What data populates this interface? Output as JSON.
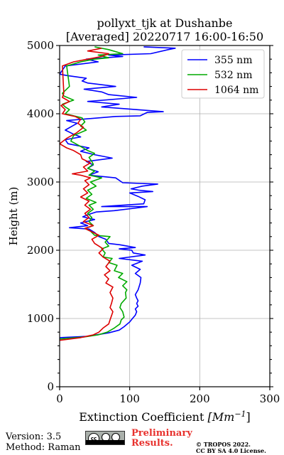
{
  "chart_data": {
    "type": "line",
    "title_line1": "pollyxt_tjk at Dushanbe",
    "title_line2": "[Averaged] 20220717 16:00-16:50",
    "xlabel": "Extinction Coefficient",
    "xlabel_unit": "[Mm^-1]",
    "ylabel": "Height (m)",
    "xlim": [
      0,
      300
    ],
    "ylim": [
      0,
      5000
    ],
    "xticks": [
      0,
      100,
      200,
      300
    ],
    "yticks": [
      0,
      1000,
      2000,
      3000,
      4000,
      5000
    ],
    "grid": true,
    "legend_position": "top-right",
    "series": [
      {
        "name": "355 nm",
        "color": "#0000ff",
        "points": [
          [
            0,
            720
          ],
          [
            40,
            740
          ],
          [
            70,
            790
          ],
          [
            85,
            830
          ],
          [
            92,
            880
          ],
          [
            100,
            950
          ],
          [
            104,
            1000
          ],
          [
            108,
            1050
          ],
          [
            110,
            1100
          ],
          [
            108,
            1140
          ],
          [
            112,
            1180
          ],
          [
            110,
            1220
          ],
          [
            112,
            1260
          ],
          [
            110,
            1300
          ],
          [
            108,
            1350
          ],
          [
            112,
            1420
          ],
          [
            115,
            1520
          ],
          [
            116,
            1600
          ],
          [
            108,
            1660
          ],
          [
            115,
            1720
          ],
          [
            103,
            1780
          ],
          [
            118,
            1840
          ],
          [
            85,
            1880
          ],
          [
            122,
            1930
          ],
          [
            105,
            1960
          ],
          [
            103,
            2000
          ],
          [
            85,
            2020
          ],
          [
            108,
            2040
          ],
          [
            86,
            2080
          ],
          [
            70,
            2100
          ],
          [
            66,
            2160
          ],
          [
            56,
            2200
          ],
          [
            50,
            2260
          ],
          [
            42,
            2310
          ],
          [
            14,
            2330
          ],
          [
            40,
            2360
          ],
          [
            30,
            2400
          ],
          [
            50,
            2450
          ],
          [
            33,
            2490
          ],
          [
            40,
            2520
          ],
          [
            52,
            2560
          ],
          [
            78,
            2580
          ],
          [
            110,
            2620
          ],
          [
            125,
            2640
          ],
          [
            60,
            2640
          ],
          [
            120,
            2680
          ],
          [
            122,
            2740
          ],
          [
            112,
            2790
          ],
          [
            100,
            2840
          ],
          [
            133,
            2860
          ],
          [
            113,
            2880
          ],
          [
            102,
            2900
          ],
          [
            118,
            2940
          ],
          [
            140,
            2970
          ],
          [
            90,
            2990
          ],
          [
            80,
            3060
          ],
          [
            42,
            3100
          ],
          [
            55,
            3150
          ],
          [
            40,
            3200
          ],
          [
            48,
            3250
          ],
          [
            38,
            3300
          ],
          [
            75,
            3350
          ],
          [
            50,
            3400
          ],
          [
            30,
            3450
          ],
          [
            42,
            3500
          ],
          [
            12,
            3560
          ],
          [
            8,
            3620
          ],
          [
            30,
            3660
          ],
          [
            20,
            3700
          ],
          [
            8,
            3760
          ],
          [
            18,
            3820
          ],
          [
            25,
            3860
          ],
          [
            10,
            3900
          ],
          [
            80,
            3960
          ],
          [
            115,
            3970
          ],
          [
            125,
            4020
          ],
          [
            148,
            4030
          ],
          [
            110,
            4060
          ],
          [
            60,
            4100
          ],
          [
            85,
            4140
          ],
          [
            40,
            4180
          ],
          [
            110,
            4240
          ],
          [
            70,
            4280
          ],
          [
            60,
            4320
          ],
          [
            35,
            4360
          ],
          [
            80,
            4400
          ],
          [
            40,
            4450
          ],
          [
            32,
            4480
          ],
          [
            38,
            4520
          ],
          [
            10,
            4560
          ],
          [
            0,
            4580
          ],
          [
            8,
            4700
          ],
          [
            55,
            4760
          ],
          [
            38,
            4800
          ],
          [
            90,
            4840
          ],
          [
            70,
            4860
          ],
          [
            130,
            4880
          ],
          [
            155,
            4940
          ],
          [
            165,
            4960
          ],
          [
            120,
            4980
          ]
        ]
      },
      {
        "name": "532 nm",
        "color": "#00aa00",
        "points": [
          [
            0,
            700
          ],
          [
            35,
            730
          ],
          [
            55,
            760
          ],
          [
            68,
            800
          ],
          [
            78,
            860
          ],
          [
            86,
            920
          ],
          [
            88,
            980
          ],
          [
            92,
            1020
          ],
          [
            90,
            1100
          ],
          [
            86,
            1160
          ],
          [
            88,
            1220
          ],
          [
            95,
            1300
          ],
          [
            94,
            1380
          ],
          [
            96,
            1420
          ],
          [
            90,
            1480
          ],
          [
            96,
            1540
          ],
          [
            84,
            1600
          ],
          [
            90,
            1660
          ],
          [
            78,
            1700
          ],
          [
            82,
            1780
          ],
          [
            70,
            1820
          ],
          [
            75,
            1880
          ],
          [
            62,
            1900
          ],
          [
            65,
            1960
          ],
          [
            60,
            2020
          ],
          [
            70,
            2060
          ],
          [
            65,
            2120
          ],
          [
            72,
            2200
          ],
          [
            50,
            2220
          ],
          [
            44,
            2280
          ],
          [
            36,
            2320
          ],
          [
            48,
            2360
          ],
          [
            42,
            2420
          ],
          [
            46,
            2480
          ],
          [
            40,
            2540
          ],
          [
            48,
            2600
          ],
          [
            42,
            2660
          ],
          [
            52,
            2700
          ],
          [
            38,
            2760
          ],
          [
            46,
            2820
          ],
          [
            40,
            2880
          ],
          [
            52,
            2940
          ],
          [
            44,
            3000
          ],
          [
            60,
            3060
          ],
          [
            42,
            3100
          ],
          [
            50,
            3160
          ],
          [
            40,
            3200
          ],
          [
            48,
            3260
          ],
          [
            46,
            3300
          ],
          [
            42,
            3360
          ],
          [
            50,
            3420
          ],
          [
            40,
            3460
          ],
          [
            30,
            3520
          ],
          [
            16,
            3600
          ],
          [
            20,
            3680
          ],
          [
            38,
            3760
          ],
          [
            30,
            3820
          ],
          [
            36,
            3880
          ],
          [
            32,
            3940
          ],
          [
            8,
            4000
          ],
          [
            14,
            4060
          ],
          [
            8,
            4100
          ],
          [
            4,
            4140
          ],
          [
            20,
            4200
          ],
          [
            6,
            4260
          ],
          [
            4,
            4300
          ],
          [
            14,
            4400
          ],
          [
            10,
            4700
          ],
          [
            30,
            4760
          ],
          [
            50,
            4800
          ],
          [
            70,
            4820
          ],
          [
            55,
            4860
          ],
          [
            90,
            4880
          ],
          [
            70,
            4940
          ],
          [
            50,
            4980
          ]
        ]
      },
      {
        "name": "1064 nm",
        "color": "#dd0000",
        "points": [
          [
            0,
            680
          ],
          [
            30,
            720
          ],
          [
            48,
            760
          ],
          [
            56,
            800
          ],
          [
            62,
            860
          ],
          [
            70,
            920
          ],
          [
            72,
            980
          ],
          [
            74,
            1040
          ],
          [
            76,
            1100
          ],
          [
            72,
            1160
          ],
          [
            74,
            1220
          ],
          [
            76,
            1300
          ],
          [
            72,
            1380
          ],
          [
            76,
            1460
          ],
          [
            66,
            1520
          ],
          [
            70,
            1580
          ],
          [
            64,
            1640
          ],
          [
            72,
            1700
          ],
          [
            66,
            1760
          ],
          [
            72,
            1840
          ],
          [
            62,
            1900
          ],
          [
            56,
            1960
          ],
          [
            62,
            2020
          ],
          [
            56,
            2060
          ],
          [
            50,
            2100
          ],
          [
            46,
            2160
          ],
          [
            56,
            2220
          ],
          [
            44,
            2280
          ],
          [
            36,
            2320
          ],
          [
            48,
            2360
          ],
          [
            34,
            2420
          ],
          [
            42,
            2480
          ],
          [
            36,
            2540
          ],
          [
            44,
            2600
          ],
          [
            36,
            2660
          ],
          [
            42,
            2720
          ],
          [
            30,
            2780
          ],
          [
            40,
            2840
          ],
          [
            34,
            2900
          ],
          [
            42,
            2960
          ],
          [
            36,
            3020
          ],
          [
            44,
            3060
          ],
          [
            30,
            3100
          ],
          [
            18,
            3120
          ],
          [
            40,
            3160
          ],
          [
            34,
            3220
          ],
          [
            44,
            3280
          ],
          [
            32,
            3340
          ],
          [
            30,
            3400
          ],
          [
            20,
            3460
          ],
          [
            10,
            3500
          ],
          [
            0,
            3560
          ],
          [
            10,
            3640
          ],
          [
            24,
            3720
          ],
          [
            34,
            3800
          ],
          [
            26,
            3860
          ],
          [
            30,
            3920
          ],
          [
            22,
            3960
          ],
          [
            4,
            4000
          ],
          [
            8,
            4060
          ],
          [
            2,
            4120
          ],
          [
            14,
            4180
          ],
          [
            4,
            4240
          ],
          [
            6,
            4300
          ],
          [
            4,
            4700
          ],
          [
            20,
            4760
          ],
          [
            40,
            4800
          ],
          [
            60,
            4840
          ],
          [
            70,
            4880
          ],
          [
            40,
            4920
          ],
          [
            60,
            4960
          ]
        ]
      }
    ]
  },
  "footer": {
    "version": "Version: 3.5",
    "method": "Method: Raman",
    "cc_label": "cc",
    "preliminary_line1": "Preliminary",
    "preliminary_line2": "Results.",
    "copyright_line1": "© TROPOS 2022.",
    "copyright_line2": "CC BY SA 4.0 License."
  }
}
